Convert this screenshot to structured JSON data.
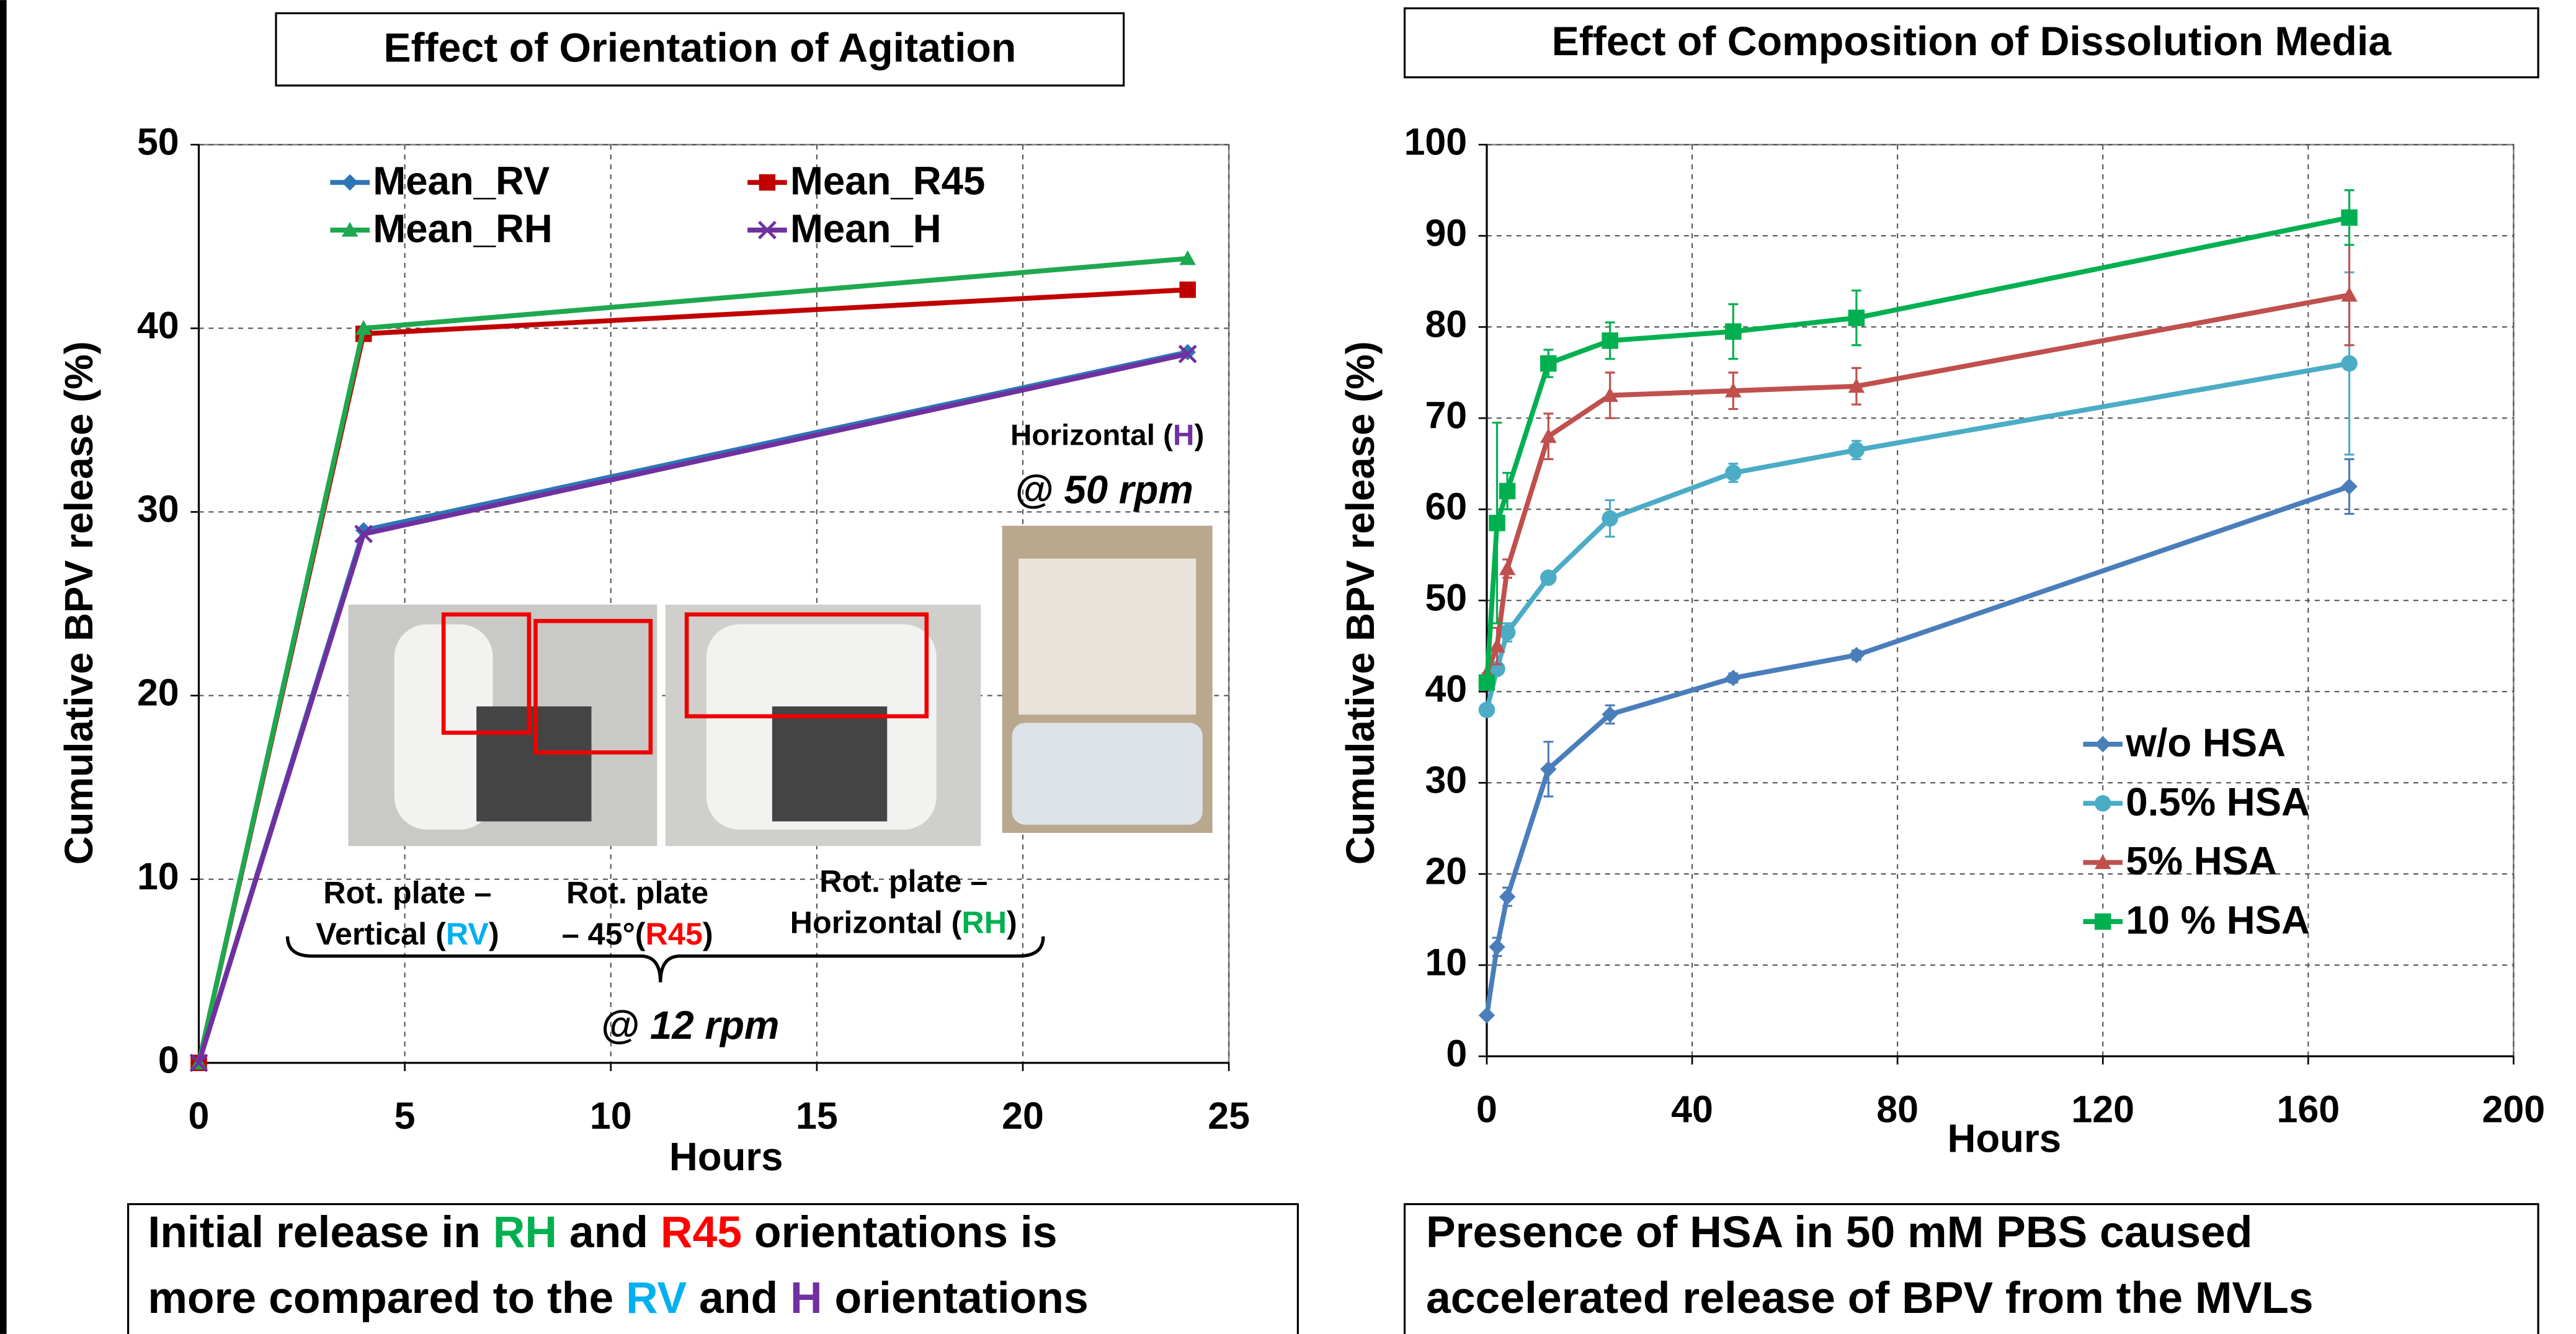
{
  "chart_data": [
    {
      "type": "line",
      "title": "Effect of Orientation of Agitation",
      "x_label": "Hours",
      "y_label": "Cumulative BPV release (%)",
      "x": [
        0,
        4,
        24
      ],
      "xlim": [
        0,
        25
      ],
      "xticks": [
        0,
        5,
        10,
        15,
        20,
        25
      ],
      "ylim": [
        0,
        50
      ],
      "yticks": [
        0,
        10,
        20,
        30,
        40,
        50
      ],
      "grid": true,
      "legend": "top",
      "series": [
        {
          "name": "Mean_RV",
          "color": "#2e75b6",
          "marker": "diamond",
          "values": [
            0,
            29,
            38.7
          ]
        },
        {
          "name": "Mean_R45",
          "color": "#c00000",
          "marker": "square",
          "values": [
            0,
            39.7,
            42.1
          ]
        },
        {
          "name": "Mean_RH",
          "color": "#1fa84f",
          "marker": "triangle",
          "values": [
            0,
            40,
            43.8
          ]
        },
        {
          "name": "Mean_H",
          "color": "#7030a0",
          "marker": "x",
          "values": [
            0,
            28.8,
            38.6
          ]
        }
      ],
      "annotations": [
        {
          "runs": [
            {
              "text": "Horizontal ("
            },
            {
              "text": "H",
              "color": "#7030a0"
            },
            {
              "text": ")"
            }
          ]
        },
        {
          "runs": [
            {
              "text": "@ 50 rpm"
            }
          ]
        },
        {
          "runs": [
            {
              "text": "Rot. plate –"
            }
          ]
        },
        {
          "runs": [
            {
              "text": "Vertical ("
            },
            {
              "text": "RV",
              "color": "#00b0f0"
            },
            {
              "text": ")"
            }
          ]
        },
        {
          "runs": [
            {
              "text": "Rot. plate"
            }
          ]
        },
        {
          "runs": [
            {
              "text": "– 45°("
            },
            {
              "text": "R45",
              "color": "#ff0000"
            },
            {
              "text": ")"
            }
          ]
        },
        {
          "runs": [
            {
              "text": "Rot. plate –"
            }
          ]
        },
        {
          "runs": [
            {
              "text": "Horizontal ("
            },
            {
              "text": "RH",
              "color": "#00b050"
            },
            {
              "text": ")"
            }
          ]
        },
        {
          "runs": [
            {
              "text": "@ 12 rpm"
            }
          ]
        }
      ],
      "note": [
        {
          "runs": [
            {
              "text": "Initial release in "
            },
            {
              "text": "RH",
              "color": "#00b050"
            },
            {
              "text": " and "
            },
            {
              "text": "R45",
              "color": "#ff0000"
            },
            {
              "text": " orientations is"
            }
          ]
        },
        {
          "runs": [
            {
              "text": "more compared to the "
            },
            {
              "text": "RV",
              "color": "#00b0f0"
            },
            {
              "text": " and "
            },
            {
              "text": "H",
              "color": "#7030a0"
            },
            {
              "text": " orientations"
            }
          ]
        }
      ]
    },
    {
      "type": "line",
      "title": "Effect of Composition of Dissolution Media",
      "x_label": "Hours",
      "y_label": "Cumulative BPV  release (%)",
      "x": [
        0,
        2,
        4,
        12,
        24,
        48,
        72,
        168
      ],
      "xlim": [
        0,
        200
      ],
      "xticks": [
        0,
        40,
        80,
        120,
        160,
        200
      ],
      "ylim": [
        0,
        100
      ],
      "yticks": [
        0,
        10,
        20,
        30,
        40,
        50,
        60,
        70,
        80,
        90,
        100
      ],
      "grid": true,
      "legend": "lower right",
      "series": [
        {
          "name": "w/o HSA",
          "color": "#4a7ebb",
          "marker": "diamond",
          "values": [
            4.5,
            12,
            17.5,
            31.5,
            37.5,
            41.5,
            44,
            62.5
          ],
          "errors": [
            0,
            1,
            1,
            3,
            1,
            0.5,
            0.5,
            3
          ]
        },
        {
          "name": "0.5% HSA",
          "color": "#4bacc6",
          "marker": "circle",
          "values": [
            38,
            42.5,
            46.5,
            52.5,
            59,
            64,
            66.5,
            76
          ],
          "errors": [
            0,
            0.5,
            1,
            0.5,
            2,
            1,
            1,
            10
          ]
        },
        {
          "name": "5% HSA",
          "color": "#c0504d",
          "marker": "triangle",
          "values": [
            42,
            45,
            53.5,
            68,
            72.5,
            73,
            73.5,
            83.5
          ],
          "errors": [
            0,
            2,
            1,
            2.5,
            2.5,
            2,
            2,
            5.5
          ]
        },
        {
          "name": "10 % HSA",
          "color": "#00b050",
          "marker": "square",
          "values": [
            41,
            58.5,
            62,
            76,
            78.5,
            79.5,
            81,
            92
          ],
          "errors": [
            0,
            11,
            2,
            1.5,
            2,
            3,
            3,
            3
          ]
        }
      ],
      "note": [
        {
          "runs": [
            {
              "text": "Presence of HSA in 50 mM PBS caused"
            }
          ]
        },
        {
          "runs": [
            {
              "text": "accelerated release of BPV from the MVLs"
            }
          ]
        }
      ]
    }
  ]
}
